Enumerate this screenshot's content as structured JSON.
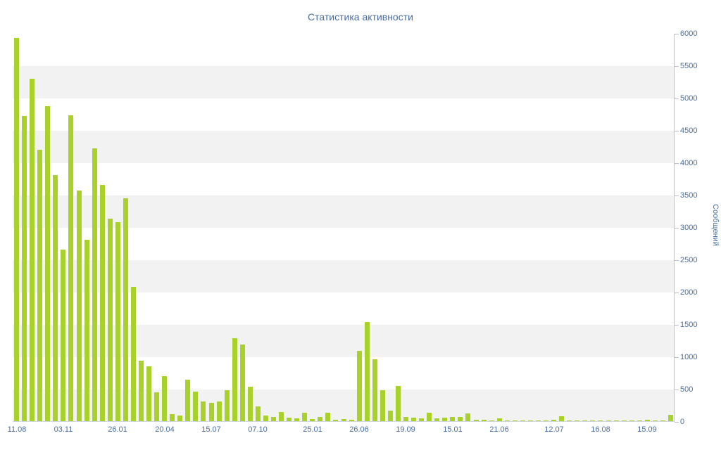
{
  "chart_data": {
    "type": "bar",
    "title": "Статистика активности",
    "xlabel": "",
    "ylabel": "Сообщений",
    "ylim": [
      0,
      6000
    ],
    "ytick_step": 500,
    "grid": "alternating-horizontal-stripes",
    "legend": "none",
    "bar_color": "#a8d12c",
    "stripe_color": "#f2f2f2",
    "axis_color": "#b9c0cf",
    "text_color": "#4a6d9e",
    "x_tick_labels": [
      "11.08",
      "03.11",
      "26.01",
      "20.04",
      "15.07",
      "07.10",
      "25.01",
      "26.06",
      "19.09",
      "15.01",
      "21.06",
      "12.07",
      "16.08",
      "15.09"
    ],
    "x_tick_indices": [
      0,
      6,
      13,
      19,
      25,
      31,
      38,
      44,
      50,
      56,
      62,
      69,
      75,
      81
    ],
    "values": [
      5920,
      4720,
      5290,
      4200,
      4870,
      3800,
      2650,
      4730,
      3570,
      2800,
      4220,
      3650,
      3130,
      3080,
      3450,
      2080,
      930,
      850,
      450,
      700,
      110,
      90,
      640,
      460,
      300,
      280,
      300,
      480,
      1280,
      1190,
      530,
      230,
      90,
      60,
      140,
      50,
      40,
      130,
      30,
      60,
      130,
      20,
      30,
      20,
      1090,
      1530,
      960,
      480,
      160,
      540,
      60,
      50,
      40,
      130,
      40,
      50,
      60,
      60,
      120,
      25,
      20,
      15,
      40,
      15,
      10,
      15,
      10,
      10,
      15,
      20,
      80,
      15,
      10,
      10,
      15,
      10,
      10,
      15,
      10,
      10,
      15,
      20,
      10,
      15,
      100
    ]
  }
}
